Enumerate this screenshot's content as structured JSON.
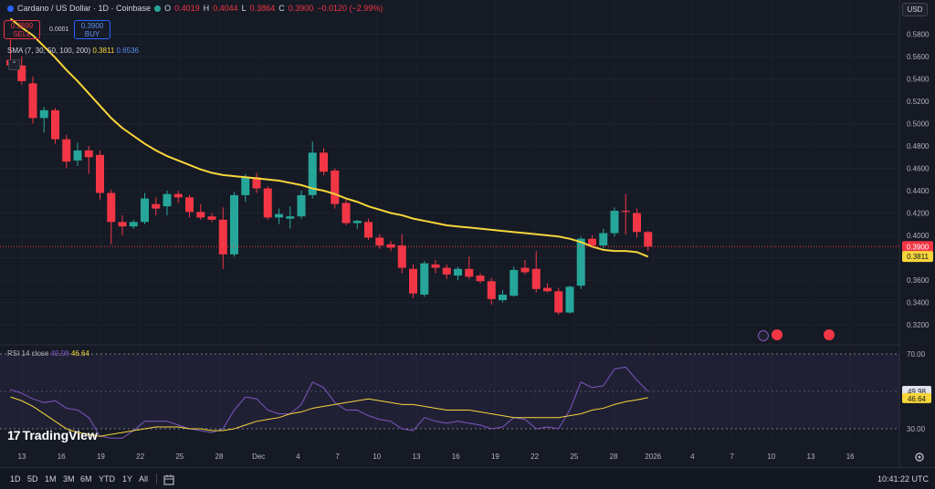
{
  "legend": {
    "title": "Cardano / US Dollar · 1D · Coinbase",
    "o_label": "O",
    "o_value": "0.4019",
    "h_label": "H",
    "h_value": "0.4044",
    "l_label": "L",
    "l_value": "0.3864",
    "c_label": "C",
    "c_value": "0.3900",
    "change": "−0.0120 (−2.99%)",
    "status_color": "#26a69a"
  },
  "trade": {
    "sell_price": "0.3899",
    "sell_label": "SELL",
    "spread": "0.0001",
    "buy_price": "0.3900",
    "buy_label": "BUY"
  },
  "sma": {
    "label": "SMA (7, 30, 50, 100, 200)",
    "value1": "0.3811",
    "value2": "0.6536"
  },
  "currency": "USD",
  "rsi": {
    "label": "RSI 14 close",
    "value1": "49.98",
    "value2": "46.64"
  },
  "brand": "TradingView",
  "bottom": {
    "ranges": [
      "1D",
      "5D",
      "1M",
      "3M",
      "6M",
      "YTD",
      "1Y",
      "All"
    ],
    "time": "10:41:22 UTC"
  },
  "colors": {
    "up": "#26a69a",
    "down": "#f23645",
    "sma": "#f7d63a",
    "rsi": "#7e57c2",
    "rsi_ma": "#f7d63a"
  },
  "chart_data": [
    {
      "type": "candlestick",
      "title": "Cardano / US Dollar · 1D · Coinbase",
      "ylim": [
        0.31,
        0.59
      ],
      "y_ticks": [
        "0.5800",
        "0.5600",
        "0.5400",
        "0.5200",
        "0.5000",
        "0.4800",
        "0.4600",
        "0.4400",
        "0.4200",
        "0.4000",
        "0.3800",
        "0.3600",
        "0.3400",
        "0.3200"
      ],
      "x_ticks": [
        "13",
        "16",
        "19",
        "22",
        "25",
        "28",
        "Dec",
        "4",
        "7",
        "10",
        "13",
        "16",
        "19",
        "22",
        "25",
        "28",
        "2026",
        "4",
        "7",
        "10",
        "13",
        "16"
      ],
      "last_price_label": "0.3900",
      "sma_value_label": "0.3811",
      "candles": [
        {
          "o": 0.557,
          "h": 0.575,
          "l": 0.548,
          "c": 0.552
        },
        {
          "o": 0.552,
          "h": 0.56,
          "l": 0.535,
          "c": 0.538
        },
        {
          "o": 0.536,
          "h": 0.542,
          "l": 0.5,
          "c": 0.505
        },
        {
          "o": 0.505,
          "h": 0.515,
          "l": 0.492,
          "c": 0.512
        },
        {
          "o": 0.512,
          "h": 0.514,
          "l": 0.482,
          "c": 0.486
        },
        {
          "o": 0.486,
          "h": 0.49,
          "l": 0.46,
          "c": 0.466
        },
        {
          "o": 0.467,
          "h": 0.483,
          "l": 0.462,
          "c": 0.476
        },
        {
          "o": 0.476,
          "h": 0.48,
          "l": 0.455,
          "c": 0.47
        },
        {
          "o": 0.472,
          "h": 0.476,
          "l": 0.432,
          "c": 0.438
        },
        {
          "o": 0.438,
          "h": 0.441,
          "l": 0.392,
          "c": 0.412
        },
        {
          "o": 0.412,
          "h": 0.418,
          "l": 0.4,
          "c": 0.408
        },
        {
          "o": 0.408,
          "h": 0.414,
          "l": 0.406,
          "c": 0.412
        },
        {
          "o": 0.412,
          "h": 0.438,
          "l": 0.41,
          "c": 0.433
        },
        {
          "o": 0.428,
          "h": 0.434,
          "l": 0.418,
          "c": 0.424
        },
        {
          "o": 0.426,
          "h": 0.44,
          "l": 0.418,
          "c": 0.437
        },
        {
          "o": 0.437,
          "h": 0.44,
          "l": 0.429,
          "c": 0.434
        },
        {
          "o": 0.434,
          "h": 0.436,
          "l": 0.416,
          "c": 0.421
        },
        {
          "o": 0.421,
          "h": 0.428,
          "l": 0.414,
          "c": 0.416
        },
        {
          "o": 0.417,
          "h": 0.42,
          "l": 0.412,
          "c": 0.414
        },
        {
          "o": 0.414,
          "h": 0.425,
          "l": 0.37,
          "c": 0.383
        },
        {
          "o": 0.383,
          "h": 0.439,
          "l": 0.381,
          "c": 0.436
        },
        {
          "o": 0.436,
          "h": 0.455,
          "l": 0.43,
          "c": 0.452
        },
        {
          "o": 0.452,
          "h": 0.456,
          "l": 0.438,
          "c": 0.442
        },
        {
          "o": 0.442,
          "h": 0.444,
          "l": 0.414,
          "c": 0.416
        },
        {
          "o": 0.416,
          "h": 0.424,
          "l": 0.41,
          "c": 0.419
        },
        {
          "o": 0.415,
          "h": 0.426,
          "l": 0.406,
          "c": 0.417
        },
        {
          "o": 0.417,
          "h": 0.44,
          "l": 0.415,
          "c": 0.436
        },
        {
          "o": 0.436,
          "h": 0.484,
          "l": 0.433,
          "c": 0.474
        },
        {
          "o": 0.474,
          "h": 0.478,
          "l": 0.454,
          "c": 0.457
        },
        {
          "o": 0.458,
          "h": 0.46,
          "l": 0.424,
          "c": 0.428
        },
        {
          "o": 0.429,
          "h": 0.432,
          "l": 0.409,
          "c": 0.411
        },
        {
          "o": 0.411,
          "h": 0.414,
          "l": 0.406,
          "c": 0.413
        },
        {
          "o": 0.412,
          "h": 0.415,
          "l": 0.396,
          "c": 0.398
        },
        {
          "o": 0.398,
          "h": 0.401,
          "l": 0.388,
          "c": 0.391
        },
        {
          "o": 0.392,
          "h": 0.395,
          "l": 0.386,
          "c": 0.389
        },
        {
          "o": 0.391,
          "h": 0.401,
          "l": 0.366,
          "c": 0.371
        },
        {
          "o": 0.37,
          "h": 0.374,
          "l": 0.344,
          "c": 0.348
        },
        {
          "o": 0.347,
          "h": 0.377,
          "l": 0.345,
          "c": 0.375
        },
        {
          "o": 0.374,
          "h": 0.378,
          "l": 0.366,
          "c": 0.371
        },
        {
          "o": 0.371,
          "h": 0.374,
          "l": 0.361,
          "c": 0.365
        },
        {
          "o": 0.364,
          "h": 0.372,
          "l": 0.36,
          "c": 0.37
        },
        {
          "o": 0.37,
          "h": 0.381,
          "l": 0.361,
          "c": 0.363
        },
        {
          "o": 0.364,
          "h": 0.366,
          "l": 0.357,
          "c": 0.359
        },
        {
          "o": 0.359,
          "h": 0.362,
          "l": 0.338,
          "c": 0.343
        },
        {
          "o": 0.342,
          "h": 0.351,
          "l": 0.34,
          "c": 0.347
        },
        {
          "o": 0.346,
          "h": 0.372,
          "l": 0.345,
          "c": 0.369
        },
        {
          "o": 0.371,
          "h": 0.378,
          "l": 0.365,
          "c": 0.367
        },
        {
          "o": 0.37,
          "h": 0.386,
          "l": 0.349,
          "c": 0.352
        },
        {
          "o": 0.353,
          "h": 0.357,
          "l": 0.349,
          "c": 0.35
        },
        {
          "o": 0.35,
          "h": 0.353,
          "l": 0.329,
          "c": 0.331
        },
        {
          "o": 0.331,
          "h": 0.355,
          "l": 0.33,
          "c": 0.354
        },
        {
          "o": 0.355,
          "h": 0.399,
          "l": 0.352,
          "c": 0.397
        },
        {
          "o": 0.397,
          "h": 0.4,
          "l": 0.389,
          "c": 0.391
        },
        {
          "o": 0.391,
          "h": 0.406,
          "l": 0.388,
          "c": 0.402
        },
        {
          "o": 0.402,
          "h": 0.425,
          "l": 0.399,
          "c": 0.422
        },
        {
          "o": 0.422,
          "h": 0.437,
          "l": 0.401,
          "c": 0.421
        },
        {
          "o": 0.42,
          "h": 0.424,
          "l": 0.398,
          "c": 0.403
        },
        {
          "o": 0.403,
          "h": 0.404,
          "l": 0.386,
          "c": 0.39
        }
      ],
      "sma": [
        0.594,
        0.586,
        0.579,
        0.569,
        0.559,
        0.548,
        0.538,
        0.527,
        0.516,
        0.505,
        0.496,
        0.489,
        0.482,
        0.476,
        0.471,
        0.467,
        0.463,
        0.459,
        0.456,
        0.454,
        0.453,
        0.452,
        0.451,
        0.45,
        0.449,
        0.447,
        0.445,
        0.442,
        0.44,
        0.437,
        0.433,
        0.43,
        0.426,
        0.423,
        0.42,
        0.418,
        0.415,
        0.413,
        0.411,
        0.409,
        0.408,
        0.407,
        0.406,
        0.405,
        0.404,
        0.403,
        0.402,
        0.401,
        0.4,
        0.399,
        0.397,
        0.394,
        0.39,
        0.387,
        0.386,
        0.386,
        0.385,
        0.381
      ]
    },
    {
      "type": "line",
      "title": "RSI 14 close",
      "ylim": [
        20,
        80
      ],
      "y_ticks": [
        "70.00",
        "30.00"
      ],
      "band": [
        30,
        70
      ],
      "midline": 50,
      "value_labels": [
        "49.98",
        "46.64"
      ],
      "series": [
        {
          "name": "RSI",
          "values": [
            51,
            49,
            46,
            44,
            45,
            41,
            40,
            36,
            26,
            25,
            25,
            29,
            34,
            34,
            34,
            32,
            30,
            29,
            28,
            30,
            40,
            47,
            46,
            40,
            38,
            38,
            43,
            55,
            52,
            44,
            40,
            40,
            37,
            35,
            34,
            30,
            29,
            36,
            34,
            33,
            34,
            33,
            32,
            30,
            31,
            36,
            35,
            30,
            31,
            30,
            40,
            55,
            52,
            53,
            62,
            63,
            56,
            49.98
          ]
        },
        {
          "name": "RSI-based MA",
          "values": [
            47,
            45,
            42,
            38,
            34,
            30,
            28,
            27,
            26,
            27,
            28,
            29,
            30,
            31,
            31,
            31,
            30,
            30,
            29,
            29,
            30,
            32,
            34,
            35,
            36,
            38,
            39,
            41,
            42,
            43,
            44,
            45,
            46,
            45,
            44,
            43,
            43,
            42,
            41,
            40,
            40,
            40,
            39,
            38,
            37,
            36,
            36,
            36,
            36,
            36,
            37,
            38,
            40,
            41,
            43,
            44.5,
            45.5,
            46.64
          ]
        }
      ]
    }
  ]
}
